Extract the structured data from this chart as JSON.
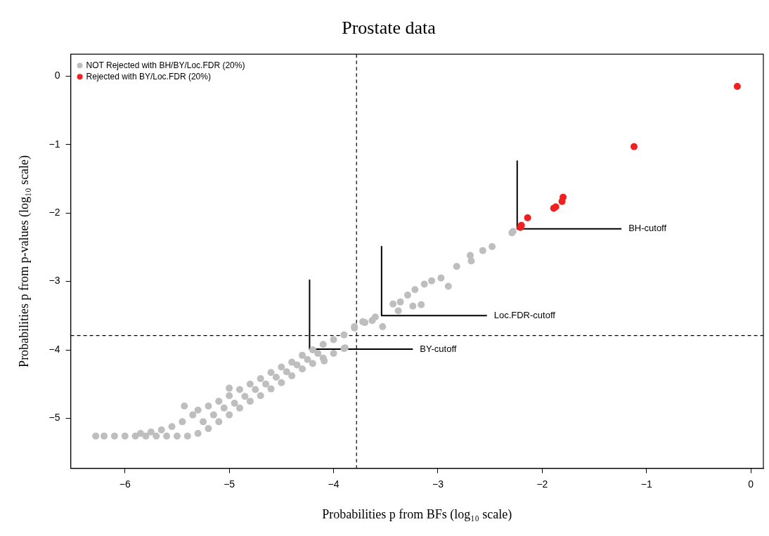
{
  "chart_data": {
    "type": "scatter",
    "title": "Prostate data",
    "xlabel": "Probabilities p from BFs (log₁₀ scale)",
    "ylabel": "Probabilities p from p-values (log₁₀ scale)",
    "xlim": [
      -6.52,
      0.12
    ],
    "ylim": [
      -5.73,
      0.32
    ],
    "xticks": [
      -6,
      -5,
      -4,
      -3,
      -2,
      -1,
      0
    ],
    "yticks": [
      -5,
      -4,
      -3,
      -2,
      -1,
      0
    ],
    "grid": false,
    "legend": "top left",
    "series": [
      {
        "name": "NOT Rejected with BH/BY/Loc.FDR (20%)",
        "color": "#bebebe",
        "marker": "circle",
        "x": [
          -6.28,
          -6.2,
          -6.1,
          -6.0,
          -5.9,
          -5.8,
          -5.7,
          -5.6,
          -5.5,
          -5.4,
          -5.85,
          -5.75,
          -5.65,
          -5.55,
          -5.45,
          -5.35,
          -5.3,
          -5.2,
          -5.1,
          -5.0,
          -4.9,
          -4.8,
          -4.7,
          -4.6,
          -4.5,
          -4.4,
          -4.3,
          -4.2,
          -4.1,
          -4.0,
          -3.9,
          -3.8,
          -3.7,
          -3.6,
          -5.3,
          -5.2,
          -5.1,
          -5.0,
          -4.9,
          -4.8,
          -4.7,
          -4.6,
          -4.5,
          -4.4,
          -4.3,
          -4.2,
          -4.1,
          -4.0,
          -3.9,
          -5.25,
          -5.15,
          -5.05,
          -4.95,
          -4.85,
          -4.75,
          -4.65,
          -4.55,
          -4.45,
          -4.35,
          -4.25,
          -4.15,
          -5.43,
          -5.0,
          -4.09,
          -3.89,
          -3.8,
          -3.72,
          -3.63,
          -3.53,
          -3.43,
          -3.36,
          -3.29,
          -3.22,
          -3.13,
          -3.06,
          -2.97,
          -2.9,
          -3.24,
          -3.16,
          -3.38,
          -2.82,
          -2.69,
          -2.68,
          -2.57,
          -2.48,
          -2.28,
          -2.29
        ],
        "values": [
          -5.26,
          -5.26,
          -5.26,
          -5.26,
          -5.26,
          -5.26,
          -5.26,
          -5.26,
          -5.26,
          -5.26,
          -5.22,
          -5.2,
          -5.17,
          -5.12,
          -5.05,
          -4.95,
          -4.88,
          -4.82,
          -4.75,
          -4.67,
          -4.58,
          -4.5,
          -4.42,
          -4.33,
          -4.25,
          -4.18,
          -4.08,
          -4.0,
          -3.92,
          -3.85,
          -3.78,
          -3.68,
          -3.6,
          -3.52,
          -5.22,
          -5.15,
          -5.05,
          -4.95,
          -4.85,
          -4.75,
          -4.67,
          -4.57,
          -4.48,
          -4.38,
          -4.28,
          -4.2,
          -4.12,
          -4.05,
          -3.98,
          -5.05,
          -4.95,
          -4.85,
          -4.78,
          -4.68,
          -4.58,
          -4.5,
          -4.4,
          -4.32,
          -4.22,
          -4.14,
          -4.05,
          -4.82,
          -4.56,
          -4.16,
          -3.97,
          -3.66,
          -3.59,
          -3.57,
          -3.66,
          -3.33,
          -3.3,
          -3.2,
          -3.12,
          -3.04,
          -2.99,
          -2.95,
          -3.07,
          -3.36,
          -3.34,
          -3.43,
          -2.78,
          -2.62,
          -2.7,
          -2.55,
          -2.49,
          -2.27,
          -2.29
        ]
      },
      {
        "name": "Rejected with BY/Loc.FDR (20%)",
        "color": "#ee2020",
        "type": "scatter",
        "marker": "circle",
        "x": [
          -0.13,
          -1.12,
          -1.8,
          -1.81,
          -1.87,
          -1.89,
          -2.14,
          -2.2,
          -2.21
        ],
        "values": [
          -0.15,
          -1.03,
          -1.77,
          -1.83,
          -1.91,
          -1.93,
          -2.07,
          -2.18,
          -2.21
        ]
      },
      {
        "color": "#000000",
        "type": "line",
        "marker": "none",
        "x": [
          -2.24,
          -2.24,
          -1.24
        ],
        "values": [
          -1.24,
          -2.23,
          -2.23
        ]
      },
      {
        "color": "#000000",
        "type": "line",
        "marker": "none",
        "x": [
          -3.54,
          -3.54,
          -2.53
        ],
        "values": [
          -2.49,
          -3.5,
          -3.5
        ]
      },
      {
        "color": "#000000",
        "type": "line",
        "marker": "none",
        "x": [
          -4.23,
          -4.23,
          -3.24
        ],
        "values": [
          -2.98,
          -3.99,
          -3.99
        ]
      }
    ],
    "ref_lines": [
      {
        "axis": "x",
        "value": -3.78,
        "line_style": "dashed",
        "color": "#000000"
      },
      {
        "axis": "y",
        "value": -3.79,
        "line_style": "dashed",
        "color": "#000000"
      }
    ],
    "annotations": [
      {
        "text": "BH-cutoff",
        "x": -1.24,
        "y": -2.23
      },
      {
        "text": "Loc.FDR-cutoff",
        "x": -2.53,
        "y": -3.5
      },
      {
        "text": "BY-cutoff",
        "x": -3.24,
        "y": -3.99
      }
    ]
  }
}
